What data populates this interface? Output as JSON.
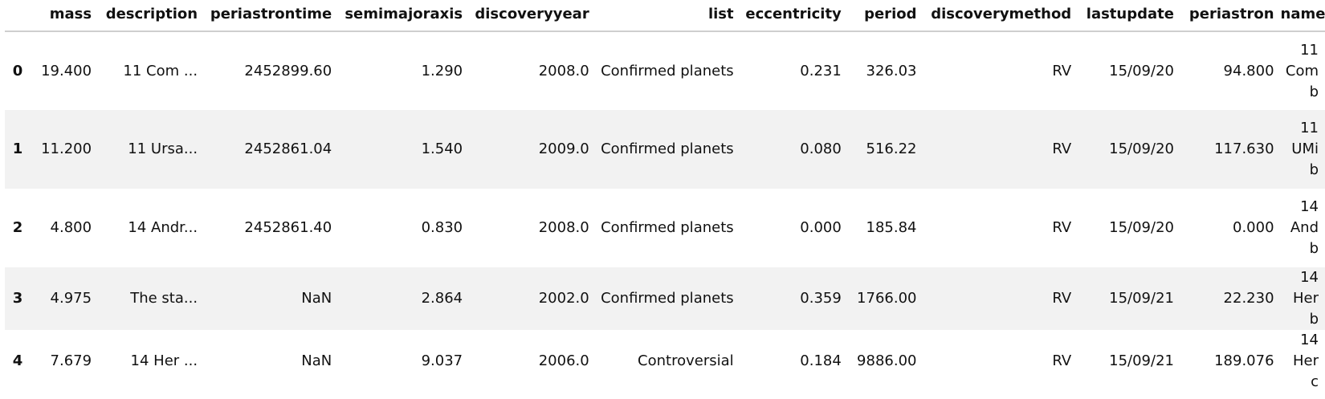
{
  "table": {
    "index_header": "",
    "columns": [
      "mass",
      "description",
      "periastrontime",
      "semimajoraxis",
      "discoveryyear",
      "list",
      "eccentricity",
      "period",
      "discoverymethod",
      "lastupdate",
      "periastron",
      "name"
    ],
    "rows": [
      {
        "index": "0",
        "cells": [
          "19.400",
          "11 Com ...",
          "2452899.60",
          "1.290",
          "2008.0",
          "Confirmed planets",
          "0.231",
          "326.03",
          "RV",
          "15/09/20",
          "94.800",
          "11 Com b"
        ]
      },
      {
        "index": "1",
        "cells": [
          "11.200",
          "11 Ursa...",
          "2452861.04",
          "1.540",
          "2009.0",
          "Confirmed planets",
          "0.080",
          "516.22",
          "RV",
          "15/09/20",
          "117.630",
          "11 UMi b"
        ]
      },
      {
        "index": "2",
        "cells": [
          "4.800",
          "14 Andr...",
          "2452861.40",
          "0.830",
          "2008.0",
          "Confirmed planets",
          "0.000",
          "185.84",
          "RV",
          "15/09/20",
          "0.000",
          "14 And b"
        ]
      },
      {
        "index": "3",
        "cells": [
          "4.975",
          "The sta...",
          "NaN",
          "2.864",
          "2002.0",
          "Confirmed planets",
          "0.359",
          "1766.00",
          "RV",
          "15/09/21",
          "22.230",
          "14 Her b"
        ]
      },
      {
        "index": "4",
        "cells": [
          "7.679",
          "14 Her ...",
          "NaN",
          "9.037",
          "2006.0",
          "Controversial",
          "0.184",
          "9886.00",
          "RV",
          "15/09/21",
          "189.076",
          "14 Her c"
        ]
      }
    ]
  }
}
